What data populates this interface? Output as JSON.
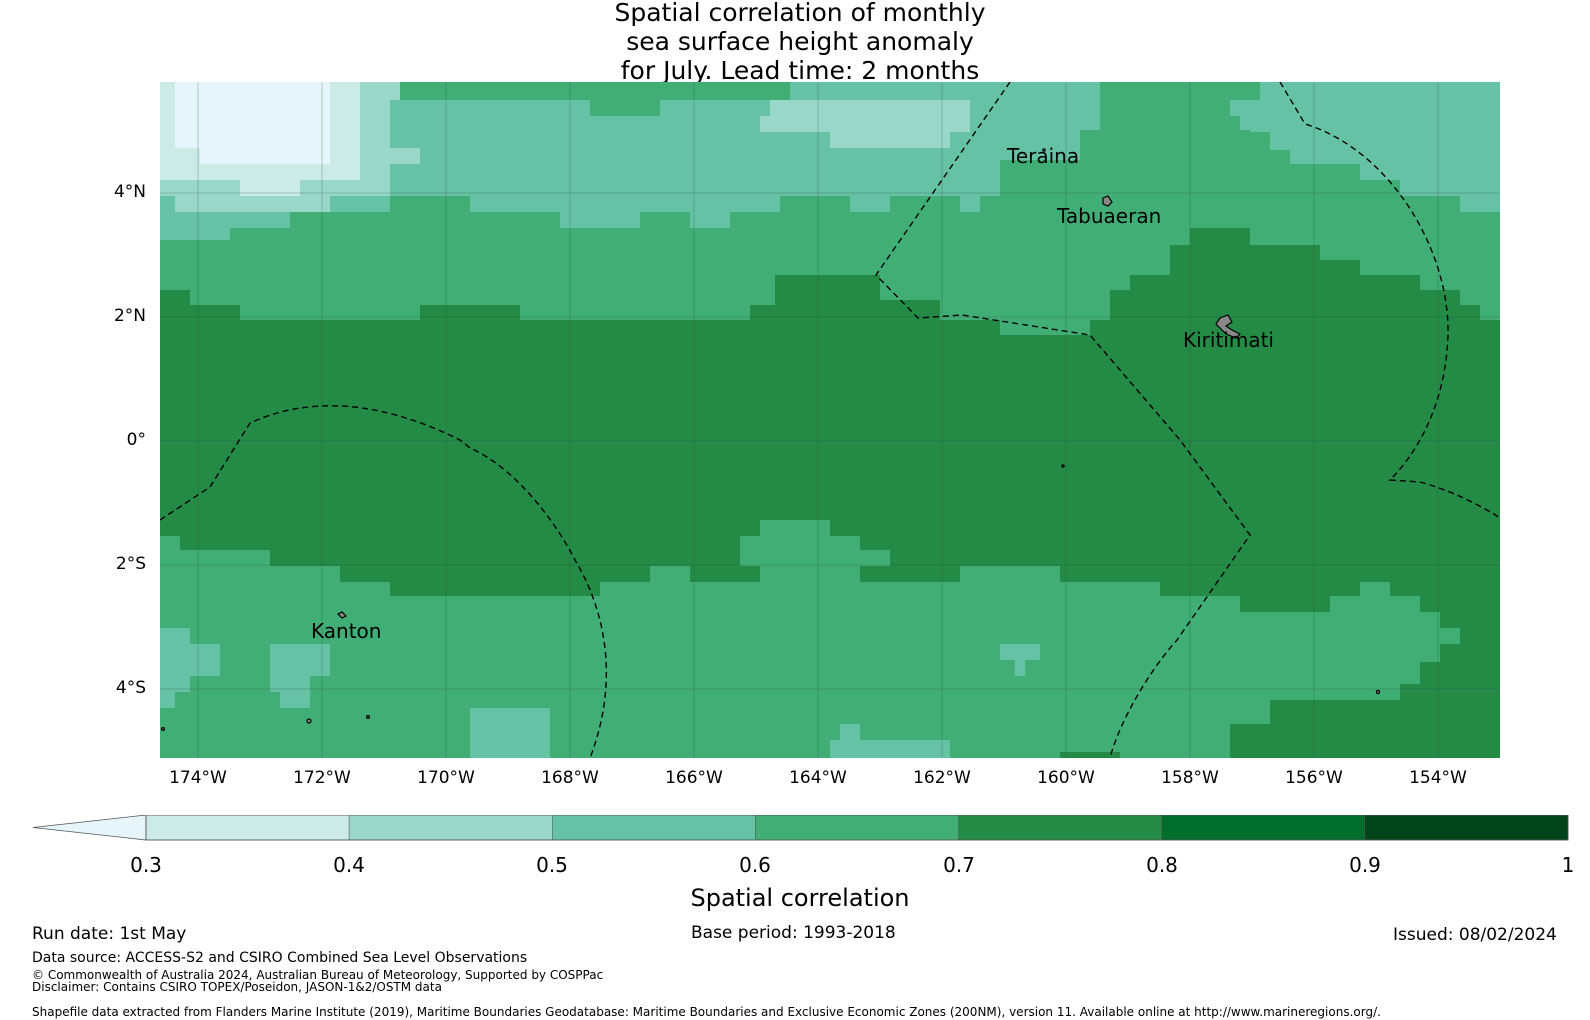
{
  "title": {
    "line1": "Spatial correlation of monthly",
    "line2": "sea surface height anomaly",
    "line3": "for July. Lead time: 2 months"
  },
  "map": {
    "lat_labels": [
      "4°N",
      "2°N",
      "0°",
      "2°S",
      "4°S"
    ],
    "lon_labels": [
      "174°W",
      "172°W",
      "170°W",
      "168°W",
      "166°W",
      "164°W",
      "162°W",
      "160°W",
      "158°W",
      "156°W",
      "154°W"
    ],
    "places": [
      "Teraina",
      "Tabuaeran",
      "Kiritimati",
      "Kanton"
    ],
    "category_colors": {
      "c30": "#cdebe6",
      "c40": "#99d8c9",
      "c50": "#66c2a4",
      "c60": "#41ae76",
      "c70": "#238b45",
      "c80": "#006d2c",
      "c90": "#00441b",
      "lowest": "#e5f5f9"
    },
    "eez_line_style": "dashed"
  },
  "colorbar": {
    "ticks": [
      "0.3",
      "0.4",
      "0.5",
      "0.6",
      "0.7",
      "0.8",
      "0.9",
      "1"
    ],
    "colors": [
      "#cdebe6",
      "#99d8c9",
      "#66c2a4",
      "#41ae76",
      "#238b45",
      "#006d2c",
      "#00441b"
    ],
    "extend_color": "#e5f5f9",
    "label": "Spatial correlation"
  },
  "footer": {
    "run_date": "Run date: 1st May",
    "base_period": "Base period: 1993-2018",
    "issued": "Issued: 08/02/2024",
    "data_source": "Data source: ACCESS-S2 and CSIRO Combined Sea Level Observations",
    "copyright": "© Commonwealth of Australia 2024, Australian Bureau of Meteorology, Supported by COSPPac",
    "disclaimer": "Disclaimer: Contains CSIRO TOPEX/Poseidon, JASON-1&2/OSTM data",
    "shapefile": "Shapefile data extracted from Flanders Marine Institute (2019), Maritime Boundaries Geodatabase: Maritime Boundaries and Exclusive Economic Zones (200NM), version 11. Available online at http://www.marineregions.org/."
  }
}
